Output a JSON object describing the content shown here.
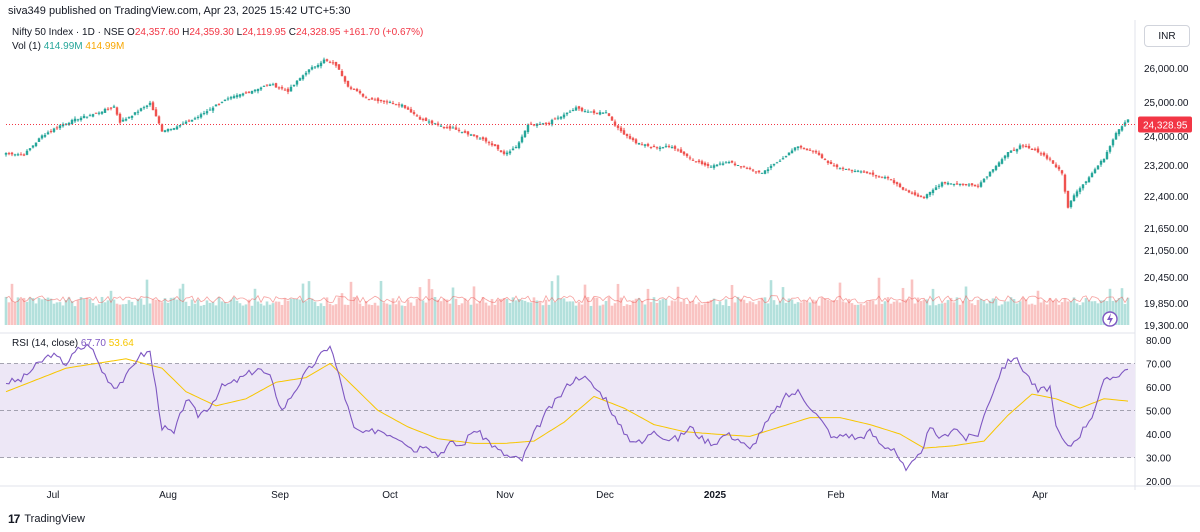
{
  "header": {
    "publisher": "siva349 published on TradingView.com, Apr 23, 2025 15:42 UTC+5:30"
  },
  "legend": {
    "symbol": "Nifty 50 Index · 1D · NSE",
    "open_label": "O",
    "open": "24,357.60",
    "high_label": "H",
    "high": "24,359.30",
    "low_label": "L",
    "low": "24,119.95",
    "close_label": "C",
    "close": "24,328.95",
    "change": "+161.70 (+0.67%)",
    "vol_label": "Vol (1)",
    "vol_value_1": "414.99M",
    "vol_value_2": "414.99M"
  },
  "rsi_legend": {
    "label": "RSI (14, close)",
    "value": "67.70",
    "ma_value": "53.64"
  },
  "currency": "INR",
  "footer": {
    "brand": "TradingView"
  },
  "colors": {
    "up": "#26a69a",
    "down": "#ef5350",
    "rsi_line": "#7e57c2",
    "rsi_ma": "#f7c600",
    "rsi_band": "#ede7f6",
    "price_line": "#f23645"
  },
  "chart_data": [
    {
      "type": "candlestick",
      "title": "Nifty 50 Index · 1D · NSE",
      "x_ticks": [
        "Jul",
        "Aug",
        "Sep",
        "Oct",
        "Nov",
        "Dec",
        "2025",
        "Feb",
        "Mar",
        "Apr"
      ],
      "y_ticks": [
        "26,000.00",
        "25,000.00",
        "24,000.00",
        "23,200.00",
        "22,400.00",
        "21,650.00",
        "21,050.00",
        "20,450.00",
        "19,850.00",
        "19,300.00"
      ],
      "last_price_label": "24,328.95",
      "ylim": [
        19100,
        26500
      ],
      "anchors": [
        [
          0,
          23500
        ],
        [
          6,
          23450
        ],
        [
          12,
          24000
        ],
        [
          18,
          24300
        ],
        [
          24,
          24500
        ],
        [
          30,
          24650
        ],
        [
          36,
          24850
        ],
        [
          38,
          24400
        ],
        [
          42,
          24600
        ],
        [
          48,
          24950
        ],
        [
          52,
          24150
        ],
        [
          58,
          24300
        ],
        [
          64,
          24550
        ],
        [
          72,
          25000
        ],
        [
          80,
          25250
        ],
        [
          88,
          25500
        ],
        [
          94,
          25300
        ],
        [
          100,
          25850
        ],
        [
          106,
          26200
        ],
        [
          110,
          26050
        ],
        [
          114,
          25450
        ],
        [
          120,
          25100
        ],
        [
          126,
          25000
        ],
        [
          132,
          24900
        ],
        [
          138,
          24500
        ],
        [
          144,
          24300
        ],
        [
          150,
          24200
        ],
        [
          156,
          24000
        ],
        [
          162,
          23750
        ],
        [
          166,
          23450
        ],
        [
          170,
          23650
        ],
        [
          174,
          24300
        ],
        [
          180,
          24350
        ],
        [
          186,
          24600
        ],
        [
          190,
          24800
        ],
        [
          196,
          24650
        ],
        [
          200,
          24700
        ],
        [
          204,
          24200
        ],
        [
          210,
          23800
        ],
        [
          216,
          23650
        ],
        [
          222,
          23700
        ],
        [
          228,
          23350
        ],
        [
          234,
          23100
        ],
        [
          240,
          23250
        ],
        [
          246,
          23100
        ],
        [
          252,
          22900
        ],
        [
          258,
          23300
        ],
        [
          264,
          23700
        ],
        [
          270,
          23500
        ],
        [
          276,
          23100
        ],
        [
          282,
          23000
        ],
        [
          288,
          22900
        ],
        [
          294,
          22750
        ],
        [
          300,
          22400
        ],
        [
          306,
          22200
        ],
        [
          312,
          22650
        ],
        [
          318,
          22600
        ],
        [
          324,
          22550
        ],
        [
          330,
          23150
        ],
        [
          334,
          23500
        ],
        [
          338,
          23700
        ],
        [
          344,
          23550
        ],
        [
          348,
          23300
        ],
        [
          352,
          22900
        ],
        [
          354,
          21900
        ],
        [
          356,
          22300
        ],
        [
          360,
          22700
        ],
        [
          366,
          23350
        ],
        [
          370,
          24100
        ],
        [
          374,
          24500
        ]
      ],
      "volume": {
        "y_ticks_in_pane": []
      }
    },
    {
      "type": "line",
      "title": "RSI (14, close)",
      "y_ticks": [
        "80.00",
        "70.00",
        "60.00",
        "50.00",
        "40.00",
        "30.00",
        "20.00"
      ],
      "ylim": [
        20,
        80
      ],
      "band": [
        30,
        70
      ],
      "series": [
        {
          "name": "RSI (14, close)",
          "anchors": [
            [
              0,
              62
            ],
            [
              5,
              63
            ],
            [
              10,
              69
            ],
            [
              15,
              74
            ],
            [
              20,
              70
            ],
            [
              24,
              76
            ],
            [
              28,
              78
            ],
            [
              32,
              67
            ],
            [
              36,
              60
            ],
            [
              40,
              64
            ],
            [
              44,
              73
            ],
            [
              48,
              75
            ],
            [
              52,
              43
            ],
            [
              56,
              40
            ],
            [
              60,
              55
            ],
            [
              64,
              48
            ],
            [
              68,
              52
            ],
            [
              72,
              60
            ],
            [
              76,
              62
            ],
            [
              80,
              65
            ],
            [
              84,
              68
            ],
            [
              88,
              64
            ],
            [
              92,
              50
            ],
            [
              96,
              58
            ],
            [
              100,
              66
            ],
            [
              104,
              72
            ],
            [
              108,
              78
            ],
            [
              112,
              60
            ],
            [
              116,
              42
            ],
            [
              120,
              40
            ],
            [
              124,
              42
            ],
            [
              128,
              40
            ],
            [
              132,
              38
            ],
            [
              136,
              33
            ],
            [
              140,
              36
            ],
            [
              144,
              31
            ],
            [
              148,
              36
            ],
            [
              152,
              35
            ],
            [
              156,
              42
            ],
            [
              160,
              38
            ],
            [
              164,
              33
            ],
            [
              168,
              30
            ],
            [
              172,
              29
            ],
            [
              176,
              40
            ],
            [
              180,
              49
            ],
            [
              184,
              55
            ],
            [
              188,
              62
            ],
            [
              192,
              65
            ],
            [
              196,
              60
            ],
            [
              200,
              55
            ],
            [
              204,
              44
            ],
            [
              208,
              38
            ],
            [
              212,
              36
            ],
            [
              216,
              42
            ],
            [
              220,
              38
            ],
            [
              224,
              38
            ],
            [
              228,
              43
            ],
            [
              232,
              38
            ],
            [
              236,
              36
            ],
            [
              240,
              40
            ],
            [
              244,
              38
            ],
            [
              248,
              33
            ],
            [
              252,
              42
            ],
            [
              256,
              49
            ],
            [
              260,
              56
            ],
            [
              264,
              58
            ],
            [
              268,
              52
            ],
            [
              272,
              45
            ],
            [
              276,
              38
            ],
            [
              280,
              40
            ],
            [
              284,
              38
            ],
            [
              288,
              41
            ],
            [
              292,
              35
            ],
            [
              296,
              34
            ],
            [
              300,
              24
            ],
            [
              304,
              30
            ],
            [
              308,
              42
            ],
            [
              312,
              38
            ],
            [
              316,
              43
            ],
            [
              320,
              38
            ],
            [
              324,
              40
            ],
            [
              328,
              55
            ],
            [
              332,
              68
            ],
            [
              336,
              73
            ],
            [
              340,
              66
            ],
            [
              344,
              58
            ],
            [
              348,
              60
            ],
            [
              350,
              42
            ],
            [
              354,
              34
            ],
            [
              358,
              40
            ],
            [
              362,
              48
            ],
            [
              366,
              62
            ],
            [
              370,
              65
            ],
            [
              374,
              67.7
            ]
          ]
        },
        {
          "name": "53.64",
          "anchors": [
            [
              0,
              58
            ],
            [
              20,
              68
            ],
            [
              40,
              72
            ],
            [
              52,
              68
            ],
            [
              60,
              58
            ],
            [
              70,
              52
            ],
            [
              80,
              55
            ],
            [
              90,
              62
            ],
            [
              100,
              64
            ],
            [
              108,
              70
            ],
            [
              116,
              60
            ],
            [
              124,
              50
            ],
            [
              134,
              43
            ],
            [
              144,
              38
            ],
            [
              156,
              36
            ],
            [
              166,
              36
            ],
            [
              176,
              37
            ],
            [
              186,
              45
            ],
            [
              196,
              56
            ],
            [
              206,
              51
            ],
            [
              216,
              44
            ],
            [
              226,
              41
            ],
            [
              236,
              40
            ],
            [
              248,
              39
            ],
            [
              258,
              43
            ],
            [
              268,
              47
            ],
            [
              278,
              47
            ],
            [
              288,
              44
            ],
            [
              298,
              40
            ],
            [
              306,
              34
            ],
            [
              316,
              35
            ],
            [
              326,
              37
            ],
            [
              334,
              48
            ],
            [
              342,
              57
            ],
            [
              350,
              55
            ],
            [
              358,
              51
            ],
            [
              366,
              55
            ],
            [
              374,
              54
            ]
          ]
        }
      ]
    }
  ]
}
